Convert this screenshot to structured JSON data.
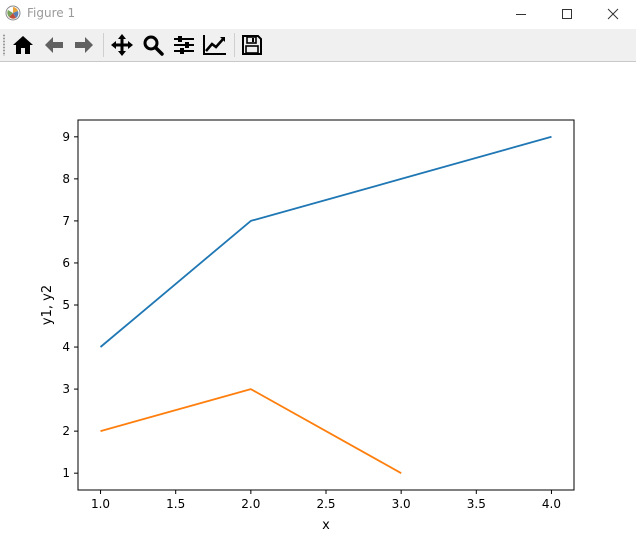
{
  "window": {
    "title": "Figure 1"
  },
  "toolbar": {
    "buttons": [
      {
        "name": "home",
        "icon": "home-icon"
      },
      {
        "name": "back",
        "icon": "arrow-left-icon"
      },
      {
        "name": "forward",
        "icon": "arrow-right-icon"
      },
      {
        "name": "pan",
        "icon": "move-icon"
      },
      {
        "name": "zoom",
        "icon": "magnifier-icon"
      },
      {
        "name": "configure-subplots",
        "icon": "sliders-icon"
      },
      {
        "name": "edit-axis",
        "icon": "line-chart-icon"
      },
      {
        "name": "save",
        "icon": "floppy-disk-icon"
      }
    ]
  },
  "chart_data": {
    "type": "line",
    "title": "",
    "xlabel": "x",
    "ylabel": "y1, y2",
    "xlim": [
      0.85,
      4.15
    ],
    "ylim": [
      0.6,
      9.4
    ],
    "xticks": [
      1.0,
      1.5,
      2.0,
      2.5,
      3.0,
      3.5,
      4.0
    ],
    "xtick_labels": [
      "1.0",
      "1.5",
      "2.0",
      "2.5",
      "3.0",
      "3.5",
      "4.0"
    ],
    "yticks": [
      1,
      2,
      3,
      4,
      5,
      6,
      7,
      8,
      9
    ],
    "ytick_labels": [
      "1",
      "2",
      "3",
      "4",
      "5",
      "6",
      "7",
      "8",
      "9"
    ],
    "grid": false,
    "series": [
      {
        "x": [
          1,
          2,
          3,
          4
        ],
        "y": [
          4,
          7,
          8,
          9
        ],
        "color": "#1f77b4"
      },
      {
        "x": [
          1,
          2,
          3
        ],
        "y": [
          2,
          3,
          1
        ],
        "color": "#ff7f0e"
      }
    ]
  }
}
